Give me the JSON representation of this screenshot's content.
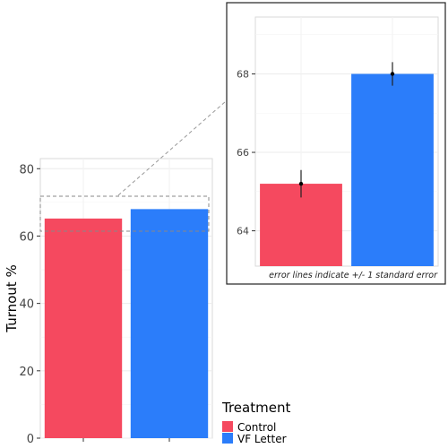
{
  "chart_data": [
    {
      "type": "bar",
      "categories": [
        "Control",
        "VF Letter"
      ],
      "values": [
        65.2,
        68.0
      ],
      "ylabel": "Turnout %",
      "ylim": [
        0,
        83
      ],
      "yticks": [
        0,
        20,
        40,
        60,
        80
      ],
      "grid": true,
      "colors": [
        "#f5495f",
        "#2b7dfa"
      ]
    },
    {
      "type": "bar",
      "categories": [
        "Control",
        "VF Letter"
      ],
      "values": [
        65.2,
        68.0
      ],
      "error": [
        0.35,
        0.3
      ],
      "ylim": [
        63.1,
        69.45
      ],
      "yticks": [
        64,
        66,
        68
      ],
      "grid": true,
      "annotation": "error lines indicate +/- 1 standard error",
      "colors": [
        "#f5495f",
        "#2b7dfa"
      ]
    }
  ],
  "legend": {
    "title": "Treatment",
    "placement": "bottom-right",
    "items": [
      {
        "label": "Control",
        "color": "#f5495f"
      },
      {
        "label": "VF Letter",
        "color": "#2b7dfa"
      }
    ]
  }
}
